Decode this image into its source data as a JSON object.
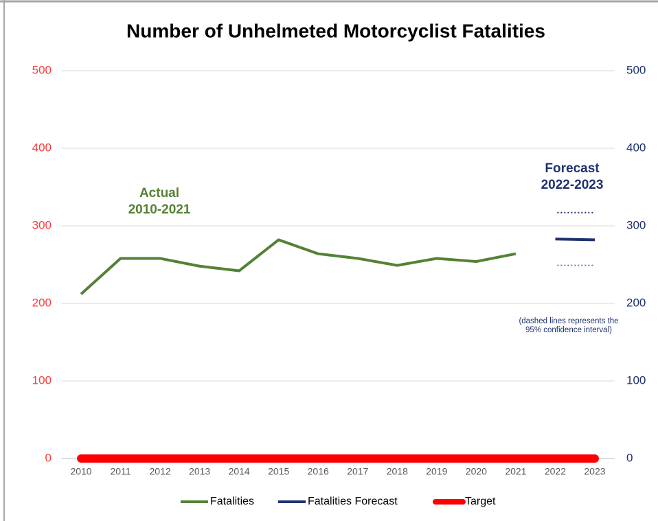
{
  "chart_data": {
    "type": "line",
    "title": "Number of Unhelmeted Motorcyclist Fatalities",
    "categories": [
      "2010",
      "2011",
      "2012",
      "2013",
      "2014",
      "2015",
      "2016",
      "2017",
      "2018",
      "2019",
      "2020",
      "2021",
      "2022",
      "2023"
    ],
    "series": [
      {
        "name": "Fatalities",
        "color": "#548235",
        "values": [
          212,
          258,
          258,
          248,
          242,
          282,
          264,
          258,
          249,
          258,
          254,
          264,
          null,
          null
        ]
      },
      {
        "name": "Fatalities Forecast",
        "color": "#1f3170",
        "axis": "y2",
        "values": [
          null,
          null,
          null,
          null,
          null,
          null,
          null,
          null,
          null,
          null,
          null,
          null,
          283,
          282
        ]
      },
      {
        "name": "Target",
        "color": "#ff0000",
        "values": [
          0,
          0,
          0,
          0,
          0,
          0,
          0,
          0,
          0,
          0,
          0,
          0,
          0,
          0
        ]
      },
      {
        "color": "#1f3170",
        "axis": "y2",
        "dashed": true,
        "values": [
          null,
          null,
          null,
          null,
          null,
          null,
          null,
          null,
          null,
          null,
          null,
          null,
          317,
          317
        ]
      },
      {
        "color": "#5b7fbf",
        "axis": "y2",
        "dashed": true,
        "values": [
          null,
          null,
          null,
          null,
          null,
          null,
          null,
          null,
          null,
          null,
          null,
          null,
          249,
          249
        ]
      }
    ],
    "ylim": [
      0,
      500
    ],
    "yticks": [
      0,
      100,
      200,
      300,
      400,
      500
    ],
    "y2lim": [
      0,
      500
    ],
    "y2ticks": [
      0,
      100,
      200,
      300,
      400,
      500
    ],
    "grid": true,
    "legend": "bottom",
    "annotations": {
      "actual": [
        "Actual",
        "2010-2021"
      ],
      "forecast": [
        "Forecast",
        "2022-2023"
      ],
      "note": [
        "(dashed lines represents the",
        "95% confidence interval)"
      ]
    }
  }
}
